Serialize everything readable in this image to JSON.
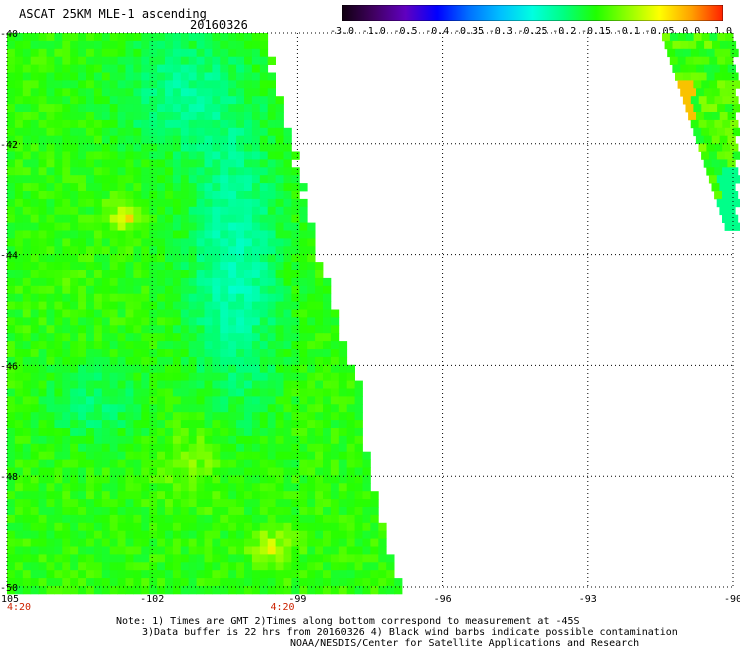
{
  "header": {
    "title": "ASCAT 25KM MLE-1 ascending",
    "date": "20160326"
  },
  "colorbar": {
    "labels": [
      "-3.0",
      "-1.0",
      "-0.5",
      "-0.4",
      "-0.35",
      "-0.3",
      "-0.25",
      "-0.2",
      "-0.15",
      "-0.1",
      "-0.05",
      "0.0",
      "1.0"
    ],
    "colors": [
      "#100010",
      "#400060",
      "#6000c0",
      "#0000ff",
      "#0070ff",
      "#00c0ff",
      "#00ffe0",
      "#00ff80",
      "#20ff00",
      "#90ff00",
      "#ffff00",
      "#ffa000",
      "#ff2000"
    ]
  },
  "axes": {
    "x_ticks": [
      "-105",
      "-102",
      "-99",
      "-96",
      "-93",
      "-90"
    ],
    "y_ticks": [
      "-40",
      "-42",
      "-44",
      "-46",
      "-48",
      "-50"
    ],
    "time_labels": [
      "4:20",
      "4:20"
    ]
  },
  "notes": {
    "line1": "Note: 1) Times are GMT 2)Times along bottom correspond to measurement at -45S",
    "line2": "3)Data buffer is 22 hrs from 20160326 4) Black wind barbs indicate possible contamination",
    "line3": "NOAA/NESDIS/Center for Satellite Applications and Research"
  }
}
